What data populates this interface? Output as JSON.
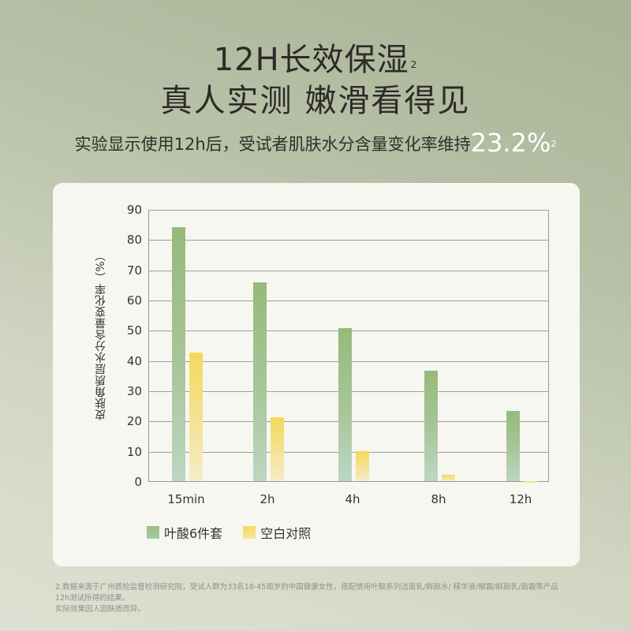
{
  "header": {
    "title_line1": "12H长效保湿",
    "title_line1_sup": "2",
    "title_line2": "真人实测 嫩滑看得见",
    "subtitle_prefix": "实验显示使用12h后，受试者肌肤水分含量变化率维持",
    "subtitle_value": "23.2%",
    "subtitle_sup": "2"
  },
  "chart_data": {
    "type": "bar",
    "title": "",
    "xlabel": "",
    "ylabel": "皮肤角质层水分含量变化率（%）",
    "ylim": [
      0,
      90
    ],
    "yticks": [
      0,
      10,
      20,
      30,
      40,
      50,
      60,
      70,
      80,
      90
    ],
    "grid": true,
    "legend_position": "bottom-left",
    "categories": [
      "15min",
      "2h",
      "4h",
      "8h",
      "12h"
    ],
    "series": [
      {
        "name": "叶酸6件套",
        "color": "#97ba7a",
        "values": [
          84.0,
          65.8,
          50.6,
          36.6,
          23.2
        ]
      },
      {
        "name": "空白对照",
        "color": "#f3d95a",
        "values": [
          42.6,
          21.2,
          9.9,
          2.2,
          -0.4
        ]
      }
    ]
  },
  "axis": {
    "ylabel": "皮肤角质层水分含量变化率（%）",
    "yticks": [
      "0",
      "10",
      "20",
      "30",
      "40",
      "50",
      "60",
      "70",
      "80",
      "90"
    ],
    "xticks": [
      "15min",
      "2h",
      "4h",
      "8h",
      "12h"
    ]
  },
  "legend": [
    {
      "label": "叶酸6件套",
      "color": "#97ba7a"
    },
    {
      "label": "空白对照",
      "color": "#f3d95a"
    }
  ],
  "footnote": {
    "line1": "2.数据来源于广州质检监督检测研究院，受试人群为33名18-45周岁的中国健康女性，搭配使用叶酸系列洁面乳/鲜颜水/ 精华液/眼霜/鲜颜乳/面霜等产品",
    "line2": "12h测试所得的结果。",
    "line3": "实际效果因人因肤质而异。"
  },
  "colors": {
    "green": "#97ba7a",
    "yellow": "#f3d95a",
    "card_bg": "#f7f7f1",
    "highlight_text": "#ffffff"
  }
}
